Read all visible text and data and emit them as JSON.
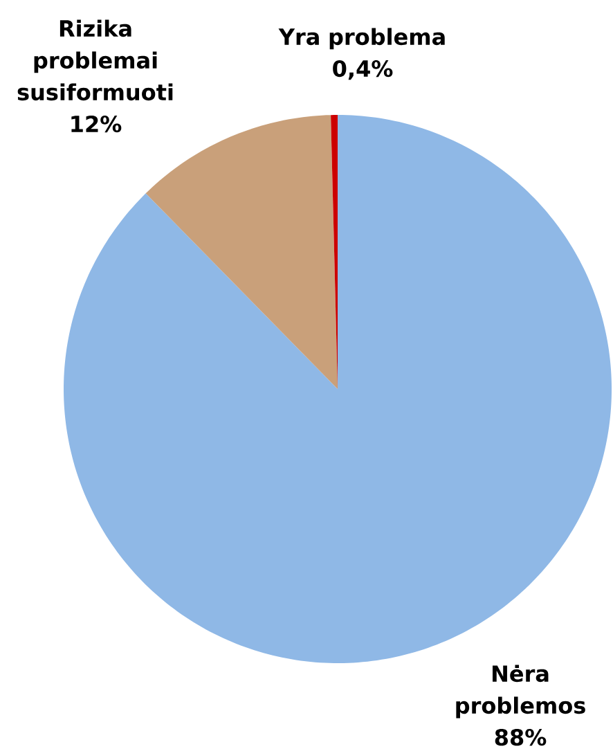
{
  "chart_data": {
    "type": "pie",
    "categories": [
      "Nėra problemos",
      "Rizika problemai susiformuoti",
      "Yra problema"
    ],
    "values": [
      88,
      12,
      0.4
    ],
    "colors": [
      "#8fb8e6",
      "#c9a07a",
      "#cc0000"
    ],
    "value_labels": [
      "88%",
      "12%",
      "0,4%"
    ]
  }
}
